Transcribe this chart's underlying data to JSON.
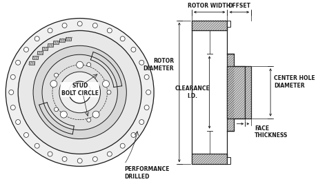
{
  "bg_color": "#ffffff",
  "line_color": "#1a1a1a",
  "labels": {
    "stud_bolt_circle": "STUD\nBOLT CIRCLE",
    "performance_drilled": "PERFORMANCE\nDRILLED",
    "rotor_width": "ROTOR WIDTH",
    "offset": "OFFSET",
    "rotor_diameter": "ROTOR\nDIAMETER",
    "clearance_id": "CLEARANCE\nI.D.",
    "center_hole_diameter": "CENTER HOLE\nDIAMETER",
    "face_thickness": "FACE\nTHICKNESS"
  },
  "font_size": 5.5
}
